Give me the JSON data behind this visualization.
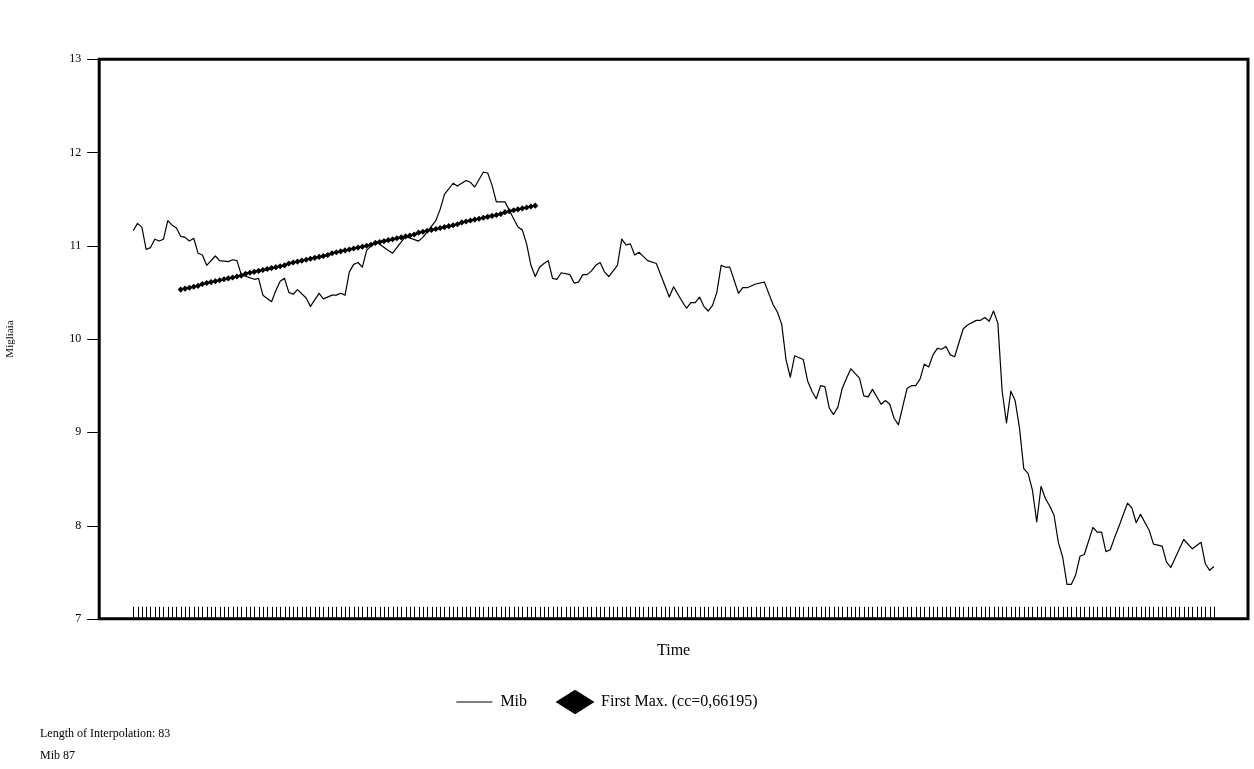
{
  "chart_data": {
    "type": "line",
    "xlabel": "Time",
    "ylabel": "Migliaia",
    "ylim": [
      7,
      13
    ],
    "yticks": [
      7,
      8,
      9,
      10,
      11,
      12,
      13
    ],
    "tick_labels": "y",
    "legend": "bottom",
    "annotations": [
      "Length of Interpolation: 83",
      "Mib 87"
    ],
    "categories": [
      null,
      null,
      null,
      null,
      null,
      null,
      null,
      null,
      null,
      null,
      null,
      null,
      null,
      null,
      null,
      null,
      null,
      null,
      null,
      null,
      null,
      null,
      null,
      null,
      null,
      null,
      null,
      null,
      null,
      null,
      null,
      null,
      null,
      null,
      null,
      null,
      null,
      null,
      null,
      null,
      null,
      null,
      null,
      null,
      null,
      null,
      null,
      null,
      null,
      null,
      null,
      null,
      null,
      null,
      null,
      null,
      null,
      null,
      null,
      null,
      null,
      null,
      null,
      null,
      null,
      null,
      null,
      null,
      null,
      null,
      null,
      null,
      null,
      null,
      null,
      null,
      null,
      null,
      null,
      null,
      null,
      null,
      null,
      null,
      null,
      null,
      null,
      null,
      null,
      null,
      null,
      null,
      null,
      null,
      null,
      null,
      null,
      null,
      null,
      null,
      null,
      null,
      null,
      null,
      null,
      null,
      null,
      null,
      null,
      null,
      null,
      null,
      null,
      null,
      null,
      null,
      null,
      null,
      null,
      null,
      null,
      null,
      null,
      null,
      null,
      null,
      null,
      null,
      null,
      null,
      null,
      null,
      null,
      null,
      null,
      null,
      null,
      null,
      null,
      null,
      null,
      null,
      null,
      null,
      null,
      null,
      null,
      null,
      null,
      null,
      null,
      null,
      null,
      null,
      null,
      null,
      null,
      null,
      null,
      null,
      null,
      null,
      null,
      null,
      null,
      null,
      null,
      null,
      null,
      null,
      null,
      null,
      null,
      null,
      null,
      null,
      null,
      null,
      null,
      null,
      null,
      null,
      null,
      null,
      null,
      null,
      null,
      null,
      null,
      null,
      null,
      null,
      null,
      null,
      null,
      null,
      null,
      null,
      null,
      null,
      null,
      null,
      null,
      null,
      null,
      null,
      null,
      null,
      null,
      null,
      null,
      null,
      null,
      null,
      null,
      null,
      null,
      null,
      null,
      null,
      null,
      null,
      null,
      null,
      null,
      null,
      null,
      null,
      null,
      null,
      null,
      null,
      null,
      null,
      null,
      null,
      null,
      null,
      null,
      null,
      null,
      null,
      null,
      null,
      null,
      null,
      null,
      null,
      null,
      null,
      null
    ],
    "series": [
      {
        "name": "Mib",
        "color": "#000000",
        "marker": "none",
        "values": [
          11.16,
          11.24,
          11.2,
          10.96,
          10.98,
          11.07,
          11.05,
          11.07,
          11.27,
          11.22,
          11.19,
          11.1,
          11.09,
          11.05,
          11.08,
          10.92,
          10.9,
          10.79,
          null,
          10.89,
          10.84,
          null,
          10.83,
          10.85,
          10.84,
          10.69,
          null,
          null,
          10.64,
          10.65,
          10.47,
          null,
          10.4,
          10.52,
          10.62,
          10.65,
          10.5,
          10.48,
          10.53,
          null,
          10.44,
          10.35,
          10.42,
          10.49,
          10.43,
          null,
          10.47,
          10.47,
          10.49,
          10.47,
          10.72,
          10.8,
          10.82,
          10.77,
          10.95,
          null,
          11.05,
          null,
          null,
          10.95,
          10.92,
          null,
          null,
          11.1,
          null,
          null,
          11.05,
          11.09,
          null,
          null,
          11.27,
          11.39,
          11.55,
          null,
          11.67,
          11.64,
          null,
          11.7,
          11.68,
          11.63,
          null,
          11.79,
          11.78,
          11.65,
          11.47,
          null,
          11.47,
          null,
          11.29,
          11.2,
          11.17,
          11.02,
          10.79,
          10.67,
          10.77,
          10.81,
          10.84,
          10.65,
          10.64,
          10.71,
          null,
          10.69,
          10.6,
          10.61,
          10.69,
          10.69,
          10.73,
          10.79,
          10.82,
          10.72,
          10.67,
          null,
          10.79,
          11.07,
          11.01,
          11.02,
          10.9,
          10.93,
          null,
          10.84,
          null,
          10.81,
          null,
          10.57,
          10.45,
          10.56,
          null,
          10.4,
          10.33,
          10.39,
          10.39,
          10.45,
          10.35,
          10.3,
          10.36,
          10.5,
          10.79,
          10.77,
          10.77,
          null,
          10.49,
          10.55,
          10.55,
          null,
          10.59,
          null,
          10.61,
          null,
          10.37,
          10.29,
          10.16,
          9.78,
          9.59,
          9.82,
          null,
          9.78,
          9.55,
          9.44,
          9.36,
          9.5,
          9.49,
          9.26,
          9.19,
          9.27,
          9.47,
          9.58,
          9.68,
          null,
          9.58,
          9.39,
          9.38,
          9.46,
          null,
          9.3,
          9.34,
          9.3,
          9.15,
          9.08,
          null,
          9.47,
          9.5,
          9.5,
          9.57,
          9.73,
          9.7,
          9.83,
          9.9,
          9.89,
          9.92,
          9.83,
          9.81,
          9.96,
          10.11,
          10.15,
          null,
          10.2,
          10.2,
          10.23,
          10.19,
          10.3,
          10.17,
          9.44,
          9.1,
          9.44,
          9.34,
          9.05,
          8.61,
          8.56,
          8.38,
          8.04,
          8.42,
          8.29,
          8.21,
          8.11,
          7.82,
          7.66,
          7.37,
          7.37,
          7.47,
          7.67,
          7.69,
          null,
          7.98,
          7.93,
          7.93,
          7.72,
          7.74,
          7.87,
          7.99,
          null,
          8.24,
          8.19,
          8.03,
          8.12,
          null,
          7.95,
          7.8,
          null,
          7.78,
          7.61,
          7.55,
          null,
          null,
          7.85,
          null,
          7.75,
          null,
          7.82,
          7.59,
          7.52,
          7.56
        ]
      },
      {
        "name": "First Max. (cc=0,66195)",
        "color": "#000000",
        "marker": "diamond",
        "values": [
          null,
          null,
          null,
          null,
          null,
          null,
          null,
          null,
          null,
          null,
          null,
          10.53,
          10.54,
          10.55,
          10.56,
          10.57,
          10.59,
          10.6,
          10.61,
          10.62,
          10.63,
          10.64,
          10.65,
          10.66,
          10.67,
          10.68,
          10.7,
          10.71,
          10.72,
          10.73,
          10.74,
          10.75,
          10.76,
          10.77,
          10.78,
          10.79,
          10.81,
          10.82,
          10.83,
          10.84,
          10.85,
          10.86,
          10.87,
          10.88,
          10.89,
          10.9,
          10.92,
          10.93,
          10.94,
          10.95,
          10.96,
          10.97,
          10.98,
          10.99,
          11.0,
          11.01,
          11.03,
          11.04,
          11.05,
          11.06,
          11.07,
          11.08,
          11.09,
          11.1,
          11.11,
          11.12,
          11.14,
          11.15,
          11.16,
          11.17,
          11.18,
          11.19,
          11.2,
          11.21,
          11.22,
          11.23,
          11.25,
          11.26,
          11.27,
          11.28,
          11.29,
          11.3,
          11.31,
          11.32,
          11.33,
          11.34,
          11.36,
          11.37,
          11.38,
          11.39,
          11.4,
          11.41,
          11.42,
          11.43,
          null,
          null,
          null,
          null,
          null,
          null,
          null,
          null,
          null,
          null,
          null,
          null,
          null,
          null,
          null,
          null,
          null,
          null,
          null,
          null,
          null,
          null,
          null,
          null,
          null,
          null,
          null,
          null,
          null,
          null,
          null,
          null,
          null,
          null,
          null,
          null,
          null,
          null,
          null,
          null,
          null,
          null,
          null,
          null,
          null,
          null,
          null,
          null,
          null,
          null,
          null,
          null,
          null,
          null,
          null,
          null,
          null,
          null,
          null,
          null,
          null,
          null,
          null,
          null,
          null,
          null,
          null,
          null,
          null,
          null,
          null,
          null,
          null,
          null,
          null,
          null,
          null,
          null,
          null,
          null,
          null,
          null,
          null,
          null,
          null,
          null,
          null,
          null,
          null,
          null,
          null,
          null,
          null,
          null,
          null,
          null,
          null,
          null,
          null,
          null,
          null,
          null,
          null,
          null,
          null,
          null,
          null,
          null,
          null,
          null,
          null,
          null,
          null,
          null,
          null,
          null,
          null,
          null,
          null,
          null,
          null,
          null,
          null,
          null,
          null,
          null,
          null,
          null,
          null,
          null,
          null,
          null,
          null,
          null,
          null,
          null,
          null,
          null,
          null,
          null,
          null,
          null,
          null,
          null,
          null,
          null,
          null,
          null,
          null,
          null,
          null,
          null,
          null,
          null,
          null,
          null,
          null
        ]
      }
    ]
  }
}
